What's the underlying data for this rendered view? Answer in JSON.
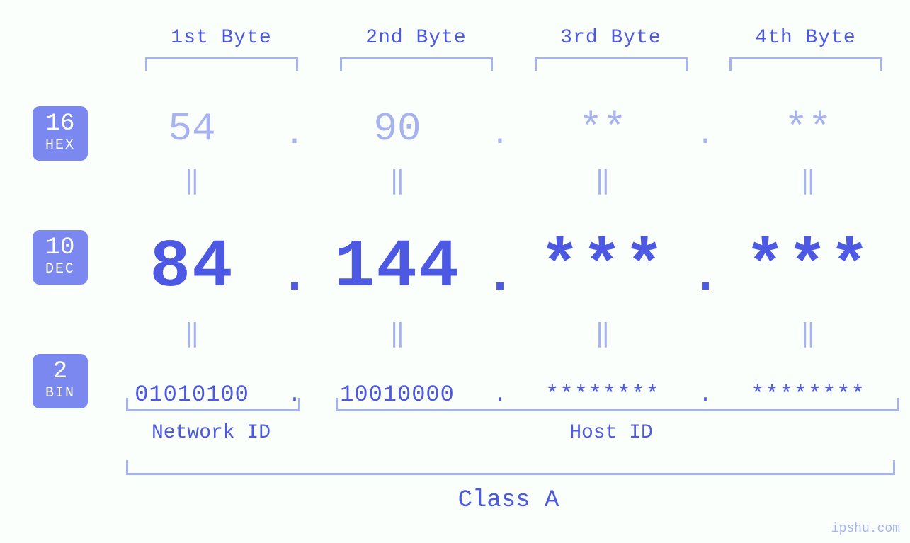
{
  "colors": {
    "page_bg": "#fafffc",
    "primary": "#4d59e3",
    "light": "#a7b2f0",
    "badge_bg": "#7a88ef",
    "badge_fg": "#ffffff"
  },
  "font_family": "Courier New, monospace",
  "byte_headers": [
    "1st Byte",
    "2nd Byte",
    "3rd Byte",
    "4th Byte"
  ],
  "bases": [
    {
      "num": "16",
      "txt": "HEX"
    },
    {
      "num": "10",
      "txt": "DEC"
    },
    {
      "num": "2",
      "txt": "BIN"
    }
  ],
  "hex": [
    "54",
    "90",
    "**",
    "**"
  ],
  "dec": [
    "84",
    "144",
    "***",
    "***"
  ],
  "bin": [
    "01010100",
    "10010000",
    "********",
    "********"
  ],
  "separator": ".",
  "equals": "‖",
  "bottom": {
    "network_label": "Network ID",
    "host_label": "Host ID",
    "class_label": "Class A"
  },
  "watermark": "ipshu.com",
  "styling": {
    "hex_fontsize": 56,
    "dec_fontsize": 96,
    "bin_fontsize": 32,
    "header_fontsize": 28,
    "label_fontsize": 28,
    "class_fontsize": 34,
    "badge_num_fontsize": 34,
    "badge_txt_fontsize": 20,
    "bracket_border_width": 3,
    "badge_border_radius": 10
  }
}
